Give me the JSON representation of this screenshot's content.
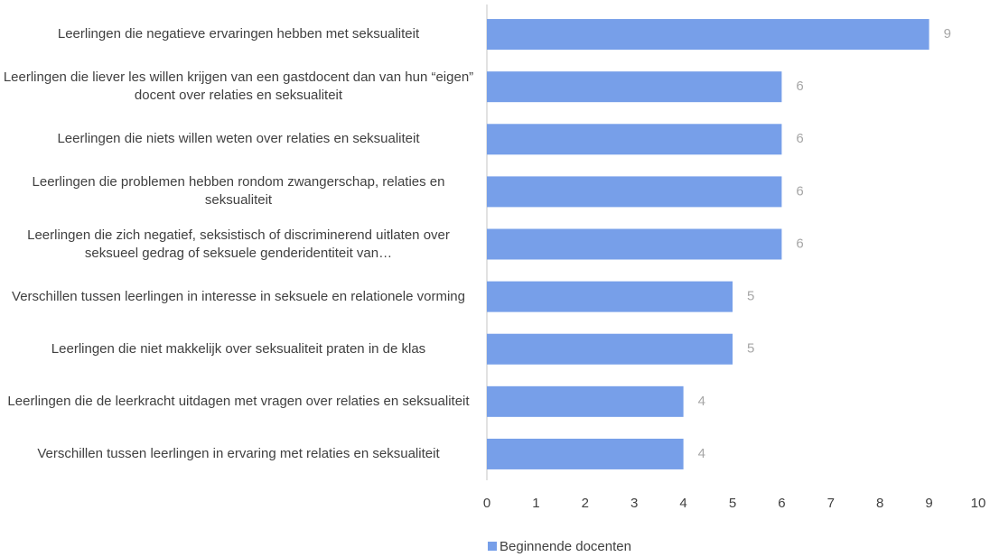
{
  "chart_data": {
    "type": "bar",
    "orientation": "horizontal",
    "categories": [
      "Leerlingen die negatieve ervaringen hebben met seksualiteit",
      "Leerlingen die liever les willen krijgen van een gastdocent dan van hun “eigen” docent over relaties en seksualiteit",
      "Leerlingen die niets willen weten over relaties en seksualiteit",
      "Leerlingen die problemen hebben rondom zwangerschap, relaties en seksualiteit",
      "Leerlingen die zich negatief, seksistisch of discriminerend uitlaten over seksueel gedrag of seksuele genderidentiteit van…",
      "Verschillen tussen leerlingen in interesse in seksuele en relationele vorming",
      "Leerlingen die niet makkelijk over seksualiteit praten in de klas",
      "Leerlingen die de leerkracht uitdagen met vragen over relaties en seksualiteit",
      "Verschillen tussen leerlingen in ervaring met relaties en seksualiteit"
    ],
    "series": [
      {
        "name": "Beginnende docenten",
        "color": "#779fe9",
        "values": [
          9,
          6,
          6,
          6,
          6,
          5,
          5,
          4,
          4
        ]
      }
    ],
    "xlim": [
      0,
      10
    ],
    "xticks": [
      0,
      1,
      2,
      3,
      4,
      5,
      6,
      7,
      8,
      9,
      10
    ],
    "grid": false,
    "legend": "bottom"
  }
}
